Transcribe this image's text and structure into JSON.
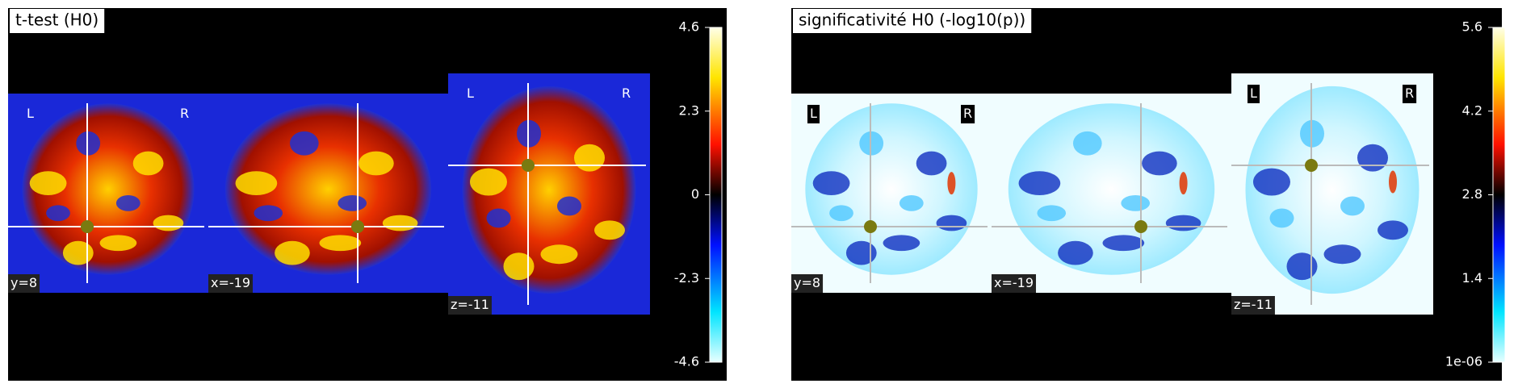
{
  "panels": [
    {
      "title": "t-test (H0)",
      "colorbar": {
        "lim": [
          -4.6,
          4.6
        ],
        "ticks": [
          4.6,
          2.3,
          0,
          -2.3,
          -4.6
        ]
      },
      "slices": [
        {
          "label": "y=8",
          "left": "L",
          "right": "R"
        },
        {
          "label": "x=-19"
        },
        {
          "label": "z=-11",
          "left": "L",
          "right": "R"
        }
      ]
    },
    {
      "title": "significativité H0 (-log10(p))",
      "colorbar": {
        "lim": [
          1e-06,
          5.6
        ],
        "ticks": [
          5.6,
          4.2,
          2.8,
          1.4,
          {
            "value": 1e-06,
            "label": "1e-06"
          }
        ]
      },
      "slices": [
        {
          "label": "y=8",
          "left": "L",
          "right": "R"
        },
        {
          "label": "x=-19"
        },
        {
          "label": "z=-11",
          "left": "L",
          "right": "R"
        }
      ]
    }
  ]
}
